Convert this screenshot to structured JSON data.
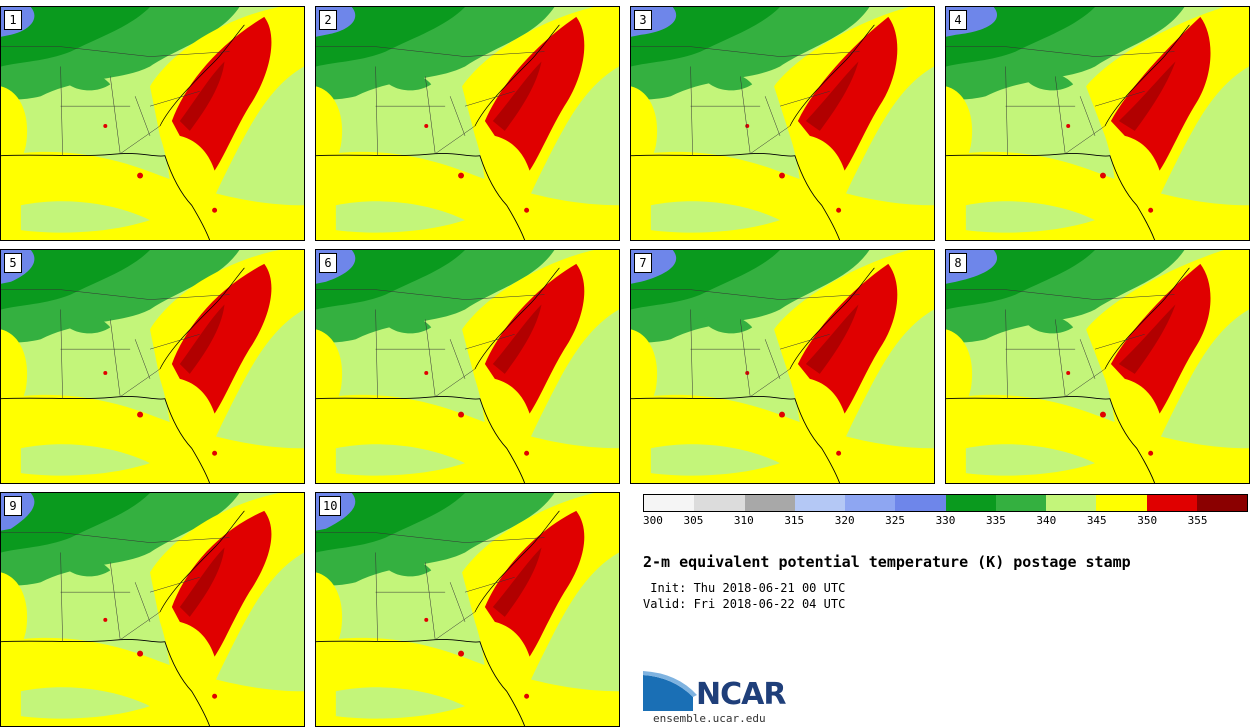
{
  "members": [
    {
      "label": "1"
    },
    {
      "label": "2"
    },
    {
      "label": "3"
    },
    {
      "label": "4"
    },
    {
      "label": "5"
    },
    {
      "label": "6"
    },
    {
      "label": "7"
    },
    {
      "label": "8"
    },
    {
      "label": "9"
    },
    {
      "label": "10"
    }
  ],
  "colorbar": {
    "ticks": [
      "300",
      "305",
      "310",
      "315",
      "320",
      "325",
      "330",
      "335",
      "340",
      "345",
      "350",
      "355"
    ],
    "colors": [
      "#f5f5f5",
      "#dcdcdc",
      "#a8a8a8",
      "#b4c8f5",
      "#8ea6f2",
      "#6e86ea",
      "#0a9a1e",
      "#34b040",
      "#c3f57a",
      "#ffff00",
      "#e00000",
      "#8b0000"
    ]
  },
  "map_colors": {
    "land": "#c3f57a",
    "dark_green": "#0a9a1e",
    "green": "#34b040",
    "blue": "#6e86ea",
    "yellow": "#ffff00",
    "red": "#e00000",
    "dark_red": "#8b0000"
  },
  "title": "2-m equivalent potential temperature (K) postage stamp",
  "init": " Init: Thu 2018-06-21 00 UTC",
  "valid": "Valid: Fri 2018-06-22 04 UTC",
  "logo": {
    "name": "NCAR",
    "url": "ensemble.ucar.edu"
  }
}
